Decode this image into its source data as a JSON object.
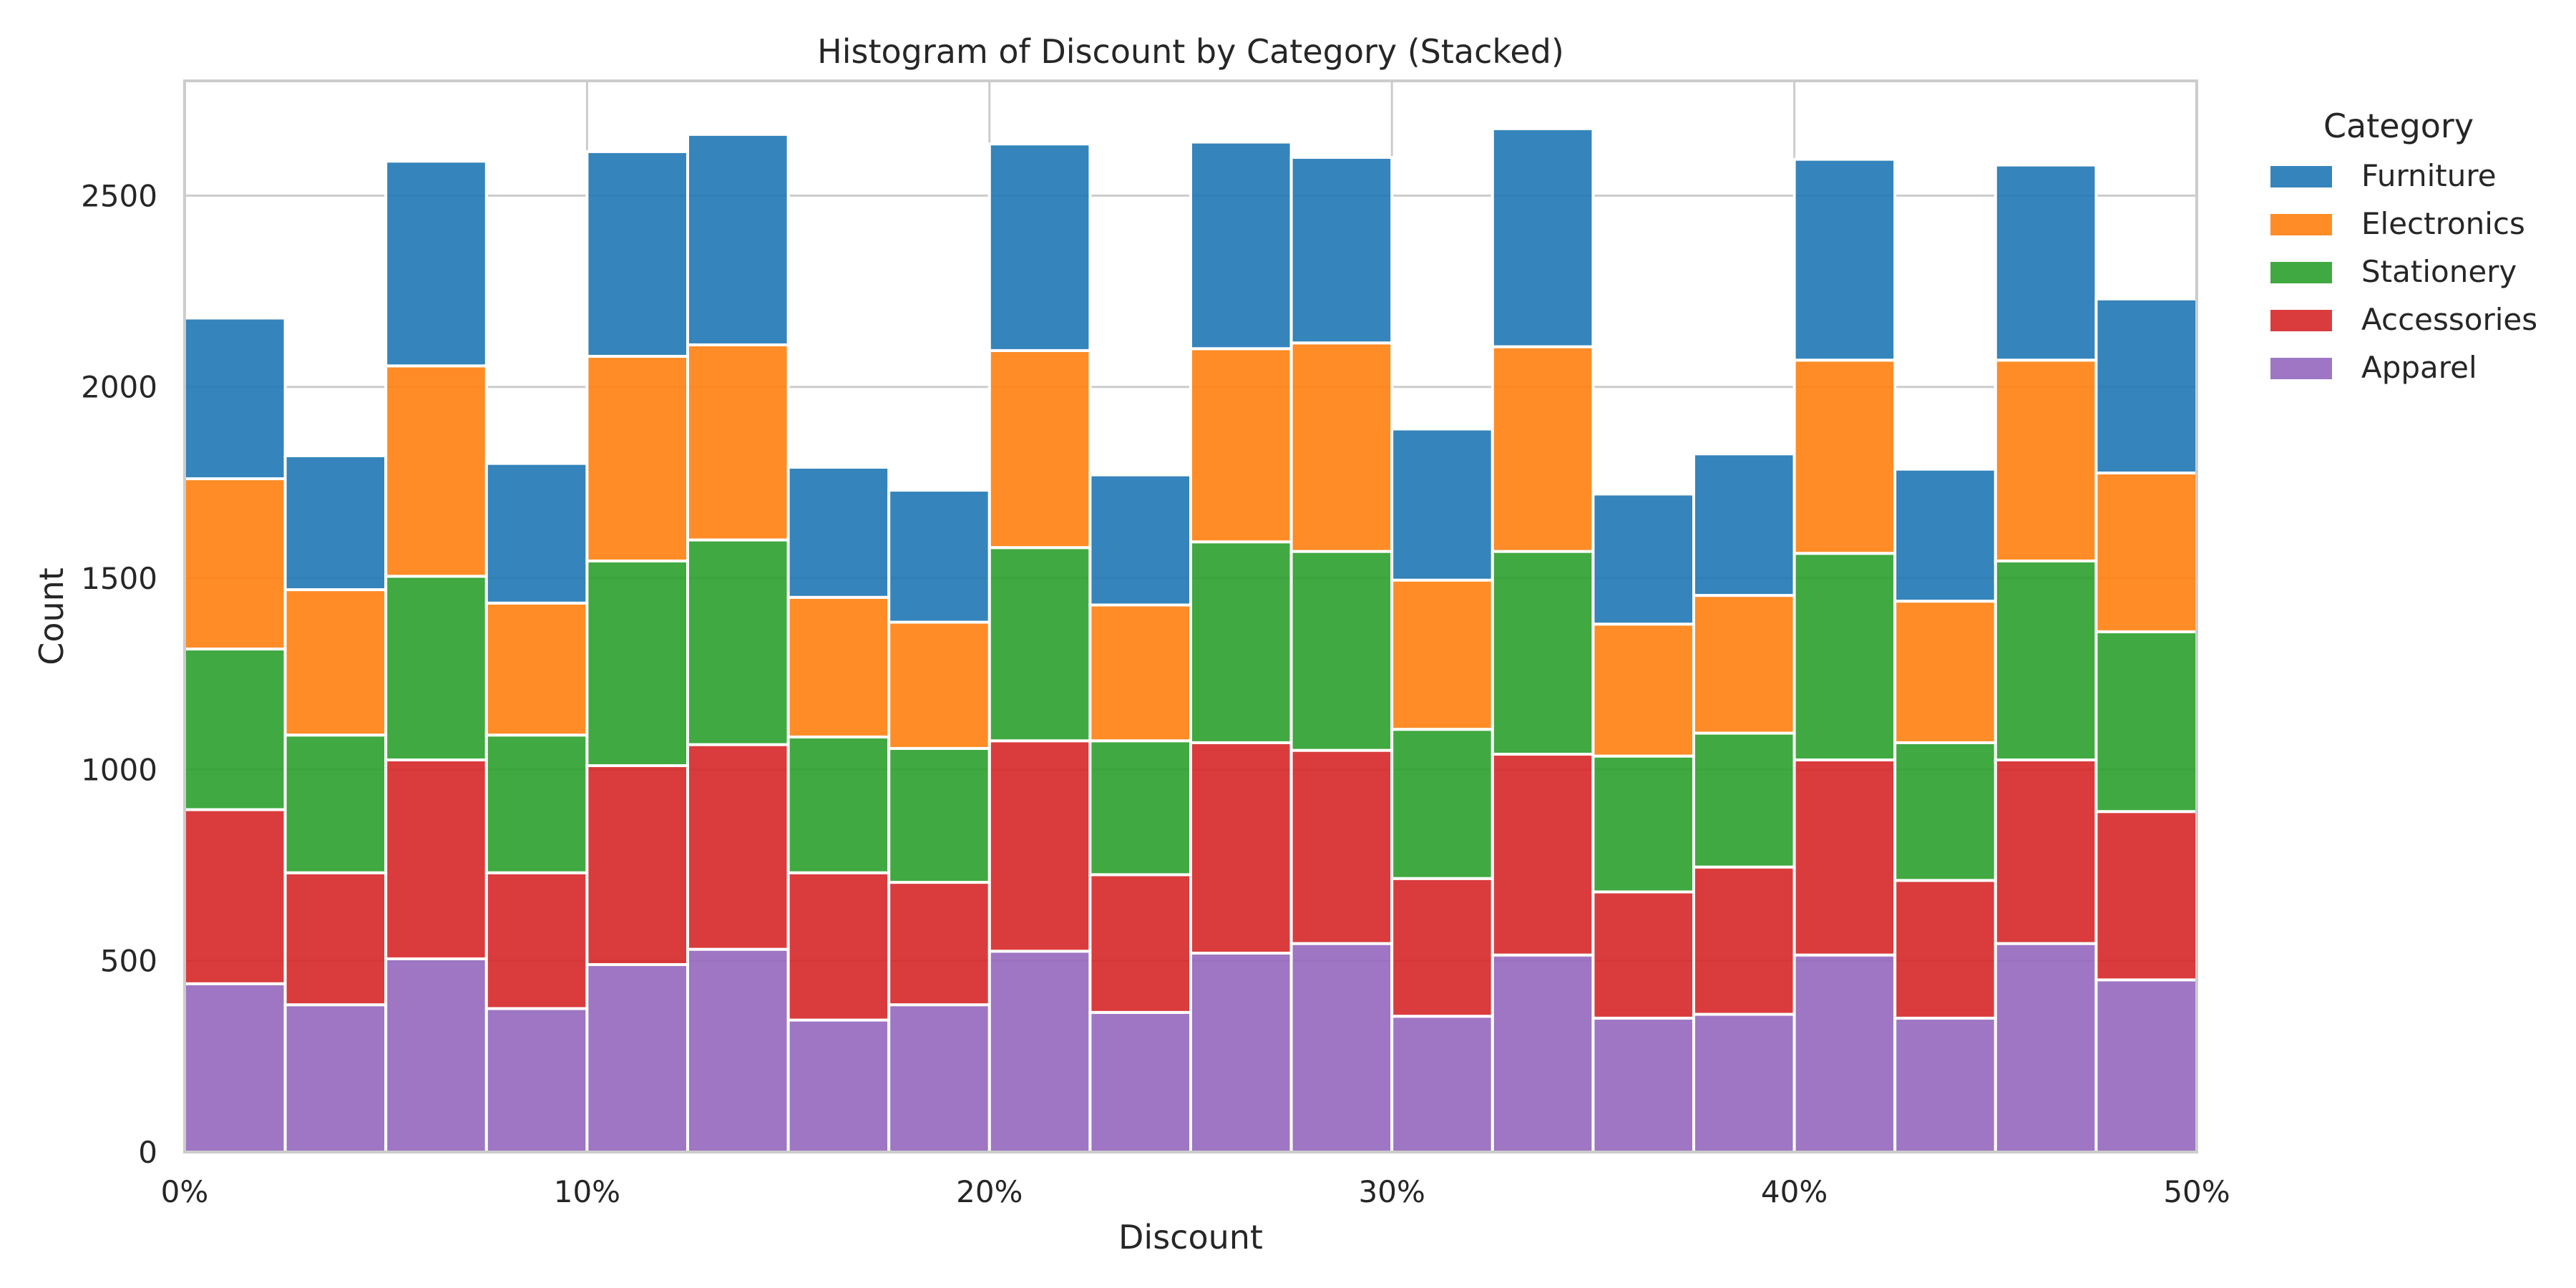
{
  "chart_data": {
    "type": "bar",
    "stacked": true,
    "title": "Histogram of Discount by Category (Stacked)",
    "xlabel": "Discount",
    "ylabel": "Count",
    "xlim": [
      0,
      50
    ],
    "ylim": [
      0,
      2800
    ],
    "bin_width": 2.5,
    "bins": [
      0,
      2.5,
      5,
      7.5,
      10,
      12.5,
      15,
      17.5,
      20,
      22.5,
      25,
      27.5,
      30,
      32.5,
      35,
      37.5,
      40,
      42.5,
      45,
      47.5
    ],
    "x_ticks": [
      {
        "value": 0,
        "label": "0%"
      },
      {
        "value": 10,
        "label": "10%"
      },
      {
        "value": 20,
        "label": "20%"
      },
      {
        "value": 30,
        "label": "30%"
      },
      {
        "value": 40,
        "label": "40%"
      },
      {
        "value": 50,
        "label": "50%"
      }
    ],
    "y_ticks": [
      {
        "value": 0,
        "label": "0"
      },
      {
        "value": 500,
        "label": "500"
      },
      {
        "value": 1000,
        "label": "1000"
      },
      {
        "value": 1500,
        "label": "1500"
      },
      {
        "value": 2000,
        "label": "2000"
      },
      {
        "value": 2500,
        "label": "2500"
      }
    ],
    "grid": true,
    "legend_title": "Category",
    "legend_position": "outside-right",
    "series": [
      {
        "name": "Apparel",
        "color": "#9467bd",
        "values": [
          440,
          385,
          505,
          375,
          490,
          530,
          345,
          385,
          525,
          365,
          520,
          545,
          355,
          515,
          350,
          360,
          515,
          350,
          545,
          450
        ]
      },
      {
        "name": "Accessories",
        "color": "#d62728",
        "values": [
          455,
          345,
          520,
          355,
          520,
          535,
          385,
          320,
          550,
          360,
          550,
          505,
          360,
          525,
          330,
          385,
          510,
          360,
          480,
          440
        ]
      },
      {
        "name": "Stationery",
        "color": "#2ca02c",
        "values": [
          420,
          360,
          480,
          360,
          535,
          535,
          355,
          350,
          505,
          350,
          525,
          520,
          390,
          530,
          355,
          350,
          540,
          360,
          520,
          470
        ]
      },
      {
        "name": "Electronics",
        "color": "#ff7f0e",
        "values": [
          445,
          380,
          550,
          345,
          535,
          510,
          365,
          330,
          515,
          355,
          505,
          545,
          390,
          535,
          345,
          360,
          505,
          370,
          525,
          415
        ]
      },
      {
        "name": "Furniture",
        "color": "#1f77b4",
        "values": [
          420,
          350,
          535,
          365,
          535,
          550,
          340,
          345,
          540,
          340,
          540,
          485,
          395,
          570,
          340,
          370,
          525,
          345,
          510,
          455
        ]
      }
    ],
    "legend_order": [
      "Furniture",
      "Electronics",
      "Stationery",
      "Accessories",
      "Apparel"
    ]
  }
}
